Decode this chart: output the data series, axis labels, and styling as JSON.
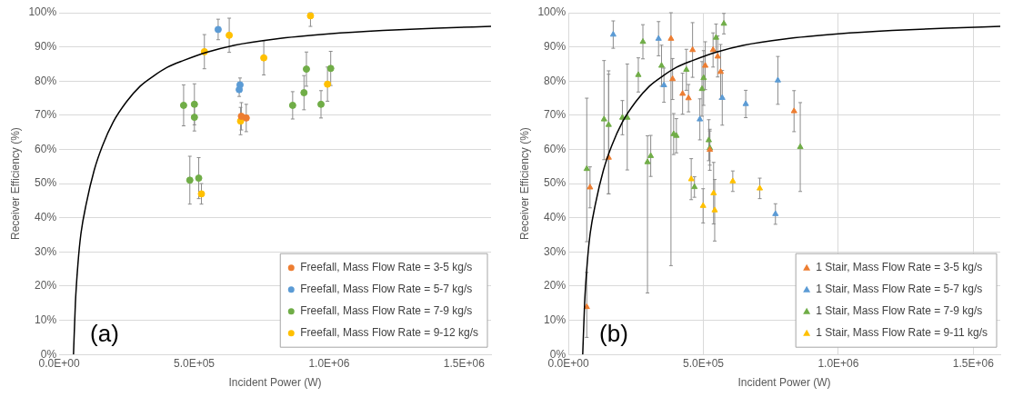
{
  "chart_data": [
    {
      "type": "scatter",
      "xlabel": "Incident Power (W)",
      "ylabel": "Receiver Efficiency (%)",
      "annotations": [
        "(a)"
      ],
      "xlim": [
        0,
        1600000
      ],
      "xticks": [
        {
          "value": 0,
          "label": "0.0E+00"
        },
        {
          "value": 500000,
          "label": "5.0E+05"
        },
        {
          "value": 1000000,
          "label": "1.0E+06"
        },
        {
          "value": 1500000,
          "label": "1.5E+06"
        }
      ],
      "ylim": [
        0,
        100
      ],
      "yticks": [
        {
          "value": 0,
          "label": "0%"
        },
        {
          "value": 10,
          "label": "10%"
        },
        {
          "value": 20,
          "label": "20%"
        },
        {
          "value": 30,
          "label": "30%"
        },
        {
          "value": 40,
          "label": "40%"
        },
        {
          "value": 50,
          "label": "50%"
        },
        {
          "value": 60,
          "label": "60%"
        },
        {
          "value": 70,
          "label": "70%"
        },
        {
          "value": 80,
          "label": "80%"
        },
        {
          "value": 90,
          "label": "90%"
        },
        {
          "value": 100,
          "label": "100%"
        }
      ],
      "grid": "y",
      "legend": "bottom right",
      "marker": "circle",
      "series": [
        {
          "name": "Freefall, Mass Flow Rate = 3-5 kg/s",
          "color": "#ed7d31",
          "x": [
            675000,
            693000
          ],
          "values": [
            69.7,
            69.2
          ],
          "errors": [
            4,
            4
          ]
        },
        {
          "name": "Freefall, Mass Flow Rate = 5-7 kg/s",
          "color": "#5b9bd5",
          "x": [
            589000,
            667000,
            670000
          ],
          "values": [
            95.1,
            77.5,
            78.9
          ],
          "errors": [
            3,
            2,
            2
          ]
        },
        {
          "name": "Freefall, Mass Flow Rate = 7-9 kg/s",
          "color": "#70ad47",
          "x": [
            461000,
            501000,
            501000,
            484000,
            517000,
            865000,
            907000,
            916000,
            970000,
            1006000
          ],
          "values": [
            72.9,
            73.2,
            69.4,
            51,
            51.6,
            72.9,
            76.6,
            83.5,
            73.2,
            83.7
          ],
          "errors": [
            6,
            6,
            4,
            7,
            6,
            4,
            5,
            5,
            4,
            5
          ]
        },
        {
          "name": "Freefall, Mass Flow Rate = 9-12 kg/s",
          "color": "#ffc000",
          "x": [
            538000,
            630000,
            527000,
            672000,
            758000,
            931000,
            994000
          ],
          "values": [
            88.6,
            93.4,
            47,
            68.3,
            86.8,
            99.1,
            79.1
          ],
          "errors": [
            5,
            5,
            3,
            4,
            5,
            [
              96,
              100
            ],
            5
          ]
        },
        {
          "type": "line",
          "marker": "none",
          "color": "#000000",
          "x": [
            53000,
            60000,
            70000,
            80000,
            100000,
            130000,
            160000,
            200000,
            250000,
            300000,
            350000,
            400000,
            460000,
            550000,
            650000,
            800000,
            1000000,
            1200000,
            1400000,
            1600000
          ],
          "values": [
            0,
            15,
            27,
            35,
            44,
            54,
            61,
            68,
            74,
            78.5,
            81.5,
            84,
            86,
            88.5,
            90.5,
            92.3,
            93.8,
            94.8,
            95.5,
            96
          ]
        }
      ]
    },
    {
      "type": "scatter",
      "xlabel": "Incident Power (W)",
      "ylabel": "Receiver Efficiency (%)",
      "annotations": [
        "(b)"
      ],
      "xlim": [
        0,
        1600000
      ],
      "xticks": [
        {
          "value": 0,
          "label": "0.0E+00"
        },
        {
          "value": 500000,
          "label": "5.0E+05"
        },
        {
          "value": 1000000,
          "label": "1.0E+06"
        },
        {
          "value": 1500000,
          "label": "1.5E+06"
        }
      ],
      "ylim": [
        0,
        100
      ],
      "yticks": [
        {
          "value": 0,
          "label": "0%"
        },
        {
          "value": 10,
          "label": "10%"
        },
        {
          "value": 20,
          "label": "20%"
        },
        {
          "value": 30,
          "label": "30%"
        },
        {
          "value": 40,
          "label": "40%"
        },
        {
          "value": 50,
          "label": "50%"
        },
        {
          "value": 60,
          "label": "60%"
        },
        {
          "value": 70,
          "label": "70%"
        },
        {
          "value": 80,
          "label": "80%"
        },
        {
          "value": 90,
          "label": "90%"
        },
        {
          "value": 100,
          "label": "100%"
        }
      ],
      "grid": true,
      "legend": "bottom right",
      "marker": "triangle",
      "series": [
        {
          "name": "1 Stair, Mass Flow Rate = 3-5 kg/s",
          "color": "#ed7d31",
          "x": [
            80000,
            68000,
            149000,
            380000,
            386000,
            423000,
            445000,
            460000,
            507000,
            524000,
            536000,
            553000,
            564000,
            836000
          ],
          "values": [
            48.9,
            13.9,
            57.6,
            92.4,
            80.6,
            76.3,
            75,
            89.1,
            84.5,
            59.9,
            89.1,
            87.2,
            82.7,
            71.2
          ],
          "errors": [
            6,
            [
              5,
              24
            ],
            [
              47,
              82
            ],
            [
              26,
              100
            ],
            6,
            6,
            4,
            8,
            7,
            6,
            5,
            6,
            8,
            6
          ]
        },
        {
          "name": "1 Stair, Mass Flow Rate = 5-7 kg/s",
          "color": "#5b9bd5",
          "x": [
            166000,
            334000,
            354000,
            487000,
            570000,
            657000,
            776000,
            767000
          ],
          "values": [
            93.6,
            92.4,
            78.8,
            68.8,
            75.1,
            73.3,
            80.2,
            41.1
          ],
          "errors": [
            4,
            5,
            5,
            6,
            8,
            4,
            7,
            3
          ]
        },
        {
          "name": "1 Stair, Mass Flow Rate = 7-9 kg/s",
          "color": "#70ad47",
          "x": [
            68000,
            132000,
            149000,
            200000,
            218000,
            259000,
            276000,
            293000,
            305000,
            345000,
            390000,
            400000,
            437000,
            467000,
            495000,
            501000,
            520000,
            524000,
            547000,
            576000,
            859000
          ],
          "values": [
            54.3,
            68.8,
            67.2,
            69.3,
            69.3,
            81.8,
            91.5,
            56.3,
            58.1,
            84.5,
            64.5,
            64,
            83.3,
            49,
            77.7,
            80.9,
            62.7,
            60.4,
            92.7,
            96.8,
            60.7
          ],
          "errors": [
            [
              33,
              75
            ],
            [
              57,
              86
            ],
            [
              47,
              83
            ],
            5,
            [
              54,
              85
            ],
            5,
            5,
            [
              18,
              64
            ],
            6,
            6,
            6,
            5,
            6,
            3,
            8,
            8,
            6,
            5,
            4,
            3,
            13
          ]
        },
        {
          "name": "1 Stair, Mass Flow Rate = 9-11 kg/s",
          "color": "#ffc000",
          "x": [
            455000,
            499000,
            538000,
            542000,
            609000,
            709000
          ],
          "values": [
            51.3,
            43.5,
            47.2,
            42.2,
            50.7,
            48.6
          ],
          "errors": [
            6,
            5,
            9,
            9,
            3,
            3
          ]
        },
        {
          "type": "line",
          "marker": "none",
          "color": "#000000",
          "x": [
            53000,
            60000,
            70000,
            80000,
            100000,
            130000,
            160000,
            200000,
            250000,
            300000,
            350000,
            400000,
            460000,
            550000,
            650000,
            800000,
            1000000,
            1200000,
            1400000,
            1600000
          ],
          "values": [
            0,
            15,
            27,
            35,
            44,
            54,
            61,
            68,
            74,
            78.5,
            81.5,
            84,
            86,
            88.5,
            90.5,
            92.3,
            93.8,
            94.8,
            95.5,
            96
          ]
        }
      ]
    }
  ]
}
